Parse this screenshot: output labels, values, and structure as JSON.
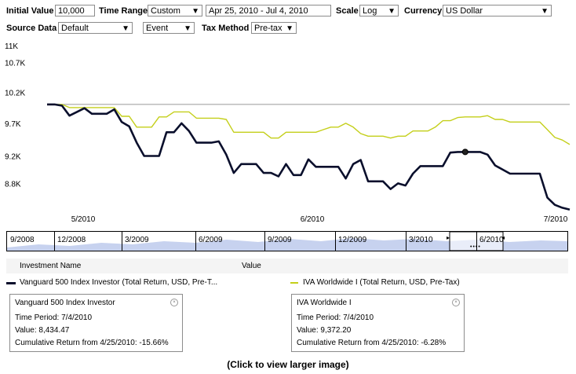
{
  "toolbar": {
    "initial_value_label": "Initial Value",
    "initial_value": "10,000",
    "time_range_label": "Time Range",
    "time_range_value": "Custom",
    "date_range": "Apr 25, 2010 - Jul 4, 2010",
    "scale_label": "Scale",
    "scale_value": "Log",
    "currency_label": "Currency",
    "currency_value": "US Dollar",
    "source_data_label": "Source Data",
    "source_data_value": "Default",
    "event_value": "Event",
    "tax_method_label": "Tax Method",
    "tax_method_value": "Pre-tax"
  },
  "chart_data": {
    "type": "line",
    "x_ticks": [
      "5/2010",
      "6/2010",
      "7/2010"
    ],
    "y_ticks": [
      "11K",
      "10.7K",
      "10.2K",
      "9.7K",
      "9.2K",
      "8.8K"
    ],
    "y_scale": "log",
    "ylim": [
      8400,
      11000
    ],
    "grid": false,
    "colors": {
      "vanguard": "#0a0f2c",
      "iva": "#c4cf1a"
    },
    "series": [
      {
        "name": "Vanguard 500 Index Investor (Total Return, USD, Pre-T...",
        "values": [
          10000,
          10000,
          9980,
          9820,
          9880,
          9940,
          9850,
          9850,
          9850,
          9920,
          9720,
          9650,
          9400,
          9200,
          9200,
          9200,
          9560,
          9560,
          9700,
          9580,
          9400,
          9400,
          9400,
          9420,
          9220,
          8950,
          9080,
          9080,
          9080,
          8950,
          8950,
          8900,
          9080,
          8920,
          8920,
          9150,
          9040,
          9040,
          9040,
          9040,
          8870,
          9080,
          9140,
          8830,
          8830,
          8830,
          8720,
          8800,
          8770,
          8940,
          9050,
          9050,
          9050,
          9050,
          9250,
          9260,
          9260,
          9260,
          9260,
          9220,
          9060,
          9000,
          8940,
          8940,
          8940,
          8940,
          8940,
          8600,
          8500,
          8460,
          8434.47
        ]
      },
      {
        "name": "IVA Worldwide I (Total Return, USD, Pre-Tax)",
        "values": [
          10000,
          10000,
          10000,
          9950,
          9950,
          9950,
          9950,
          9950,
          9950,
          9950,
          9810,
          9810,
          9640,
          9640,
          9640,
          9800,
          9800,
          9880,
          9880,
          9880,
          9780,
          9780,
          9780,
          9780,
          9760,
          9560,
          9560,
          9560,
          9560,
          9560,
          9470,
          9470,
          9560,
          9560,
          9560,
          9560,
          9560,
          9600,
          9640,
          9640,
          9700,
          9640,
          9540,
          9500,
          9500,
          9500,
          9470,
          9500,
          9500,
          9580,
          9580,
          9580,
          9640,
          9740,
          9740,
          9790,
          9800,
          9800,
          9800,
          9820,
          9760,
          9760,
          9720,
          9720,
          9720,
          9720,
          9720,
          9600,
          9480,
          9440,
          9372.2
        ]
      }
    ],
    "highlight_index": 56
  },
  "navigator": {
    "labels": [
      "9/2008",
      "12/2008",
      "3/2009",
      "6/2009",
      "9/2009",
      "12/2009",
      "3/2010",
      "6/2010"
    ]
  },
  "legend": {
    "col_investment": "Investment Name",
    "col_value": "Value"
  },
  "tooltips": {
    "vanguard": {
      "title": "Vanguard 500 Index Investor",
      "period": "Time Period: 7/4/2010",
      "value": "Value: 8,434.47",
      "return": "Cumulative Return from 4/25/2010: -15.66%"
    },
    "iva": {
      "title": "IVA Worldwide I",
      "period": "Time Period: 7/4/2010",
      "value": "Value: 9,372.20",
      "return": "Cumulative Return from 4/25/2010: -6.28%"
    }
  },
  "caption": "(Click to view larger image)"
}
